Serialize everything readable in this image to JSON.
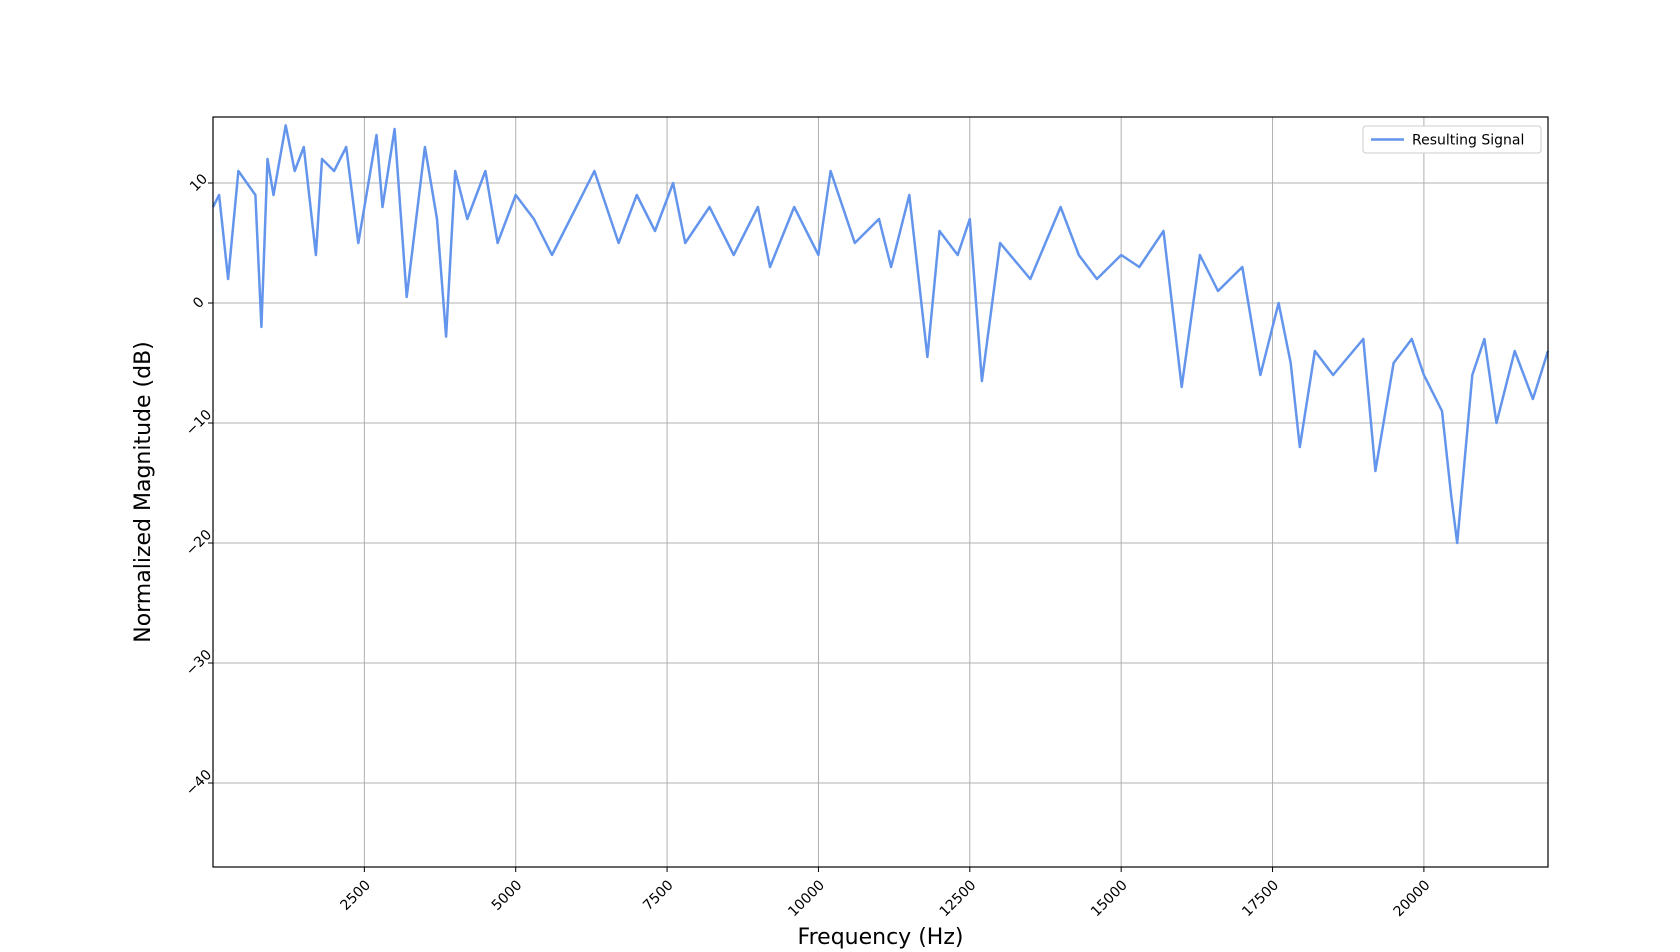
{
  "chart_data": {
    "type": "line",
    "title": "",
    "xlabel": "Frequency (Hz)",
    "ylabel": "Normalized Magnitude (dB)",
    "xlim": [
      0,
      22050
    ],
    "ylim": [
      -47,
      15.5
    ],
    "xticks": [
      2500,
      5000,
      7500,
      10000,
      12500,
      15000,
      17500,
      20000
    ],
    "yticks": [
      -40,
      -30,
      -20,
      -10,
      0,
      10
    ],
    "xtick_labels": [
      "2500",
      "5000",
      "7500",
      "10000",
      "12500",
      "15000",
      "17500",
      "20000"
    ],
    "ytick_labels": [
      "−40",
      "−30",
      "−20",
      "−10",
      "0",
      "10"
    ],
    "grid": true,
    "legend": {
      "position": "top-right",
      "entries": [
        "Resulting Signal"
      ]
    },
    "series": [
      {
        "name": "Resulting Signal",
        "color": "#6495ED",
        "x": [
          0,
          100,
          250,
          420,
          700,
          800,
          900,
          1000,
          1200,
          1350,
          1500,
          1700,
          1800,
          2000,
          2200,
          2400,
          2500,
          2700,
          2800,
          3000,
          3200,
          3500,
          3700,
          3850,
          4000,
          4200,
          4500,
          4700,
          5000,
          5300,
          5600,
          6000,
          6300,
          6700,
          7000,
          7300,
          7600,
          7800,
          8200,
          8600,
          9000,
          9200,
          9600,
          10000,
          10200,
          10600,
          11000,
          11200,
          11500,
          11800,
          12000,
          12300,
          12500,
          12700,
          13000,
          13500,
          14000,
          14300,
          14600,
          15000,
          15300,
          15700,
          16000,
          16300,
          16600,
          17000,
          17300,
          17600,
          17800,
          17950,
          18200,
          18500,
          19000,
          19200,
          19500,
          19800,
          20000,
          20300,
          20450,
          20550,
          20800,
          21000,
          21200,
          21500,
          21800,
          22050
        ],
        "y": [
          8,
          9,
          2,
          11,
          9,
          -2,
          12,
          9,
          14.8,
          11,
          13,
          4,
          12,
          11,
          13,
          5,
          8,
          14,
          8,
          14.5,
          0.5,
          13,
          7,
          -2.8,
          11,
          7,
          11,
          5,
          9,
          7,
          4,
          8,
          11,
          5,
          9,
          6,
          10,
          5,
          8,
          4,
          8,
          3,
          8,
          4,
          11,
          5,
          7,
          3,
          9,
          -4.5,
          6,
          4,
          7,
          -6.5,
          5,
          2,
          8,
          4,
          2,
          4,
          3,
          6,
          -7,
          4,
          1,
          3,
          -6,
          0,
          -5,
          -12,
          -4,
          -6,
          -3,
          -14,
          -5,
          -3,
          -6,
          -9,
          -16,
          -20,
          -6,
          -3,
          -10,
          -4,
          -8,
          -4
        ]
      }
    ]
  }
}
